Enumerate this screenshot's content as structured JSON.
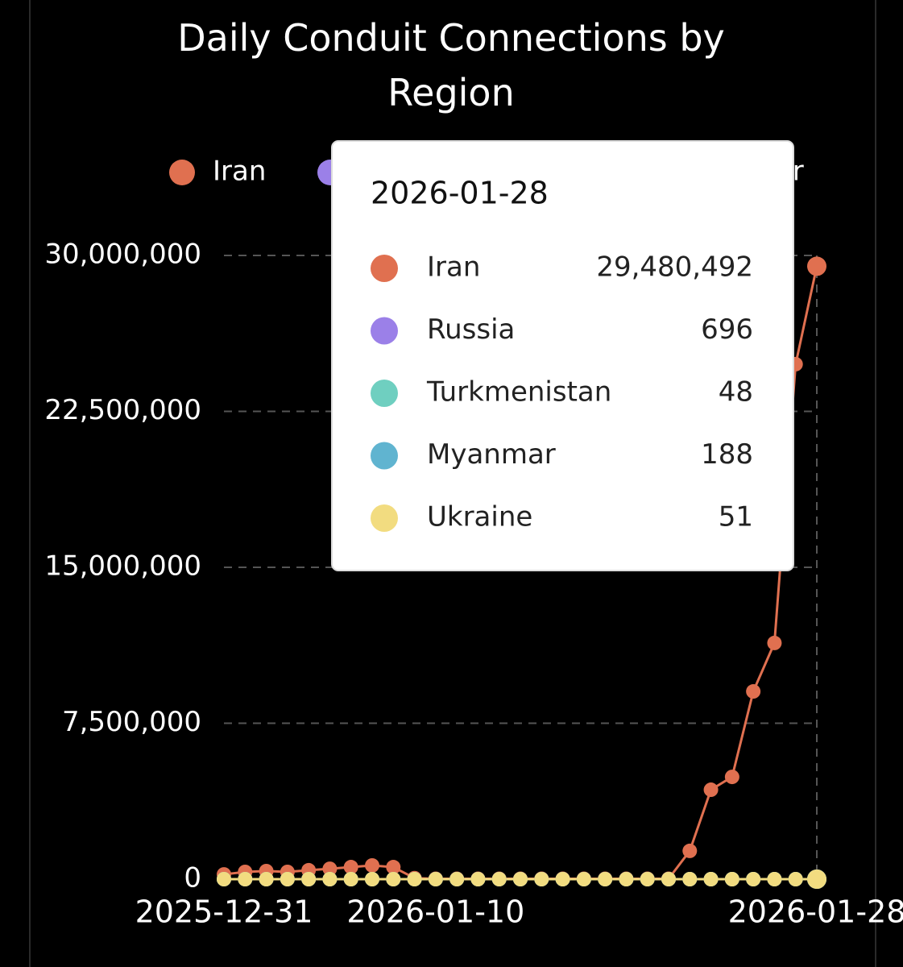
{
  "chart_data": {
    "type": "line",
    "title": "Daily Conduit Connections by Region",
    "categories": [
      "2025-12-31",
      null,
      null,
      null,
      null,
      null,
      null,
      null,
      null,
      null,
      "2026-01-10",
      null,
      null,
      null,
      null,
      null,
      null,
      null,
      null,
      null,
      null,
      null,
      null,
      null,
      null,
      null,
      null,
      null,
      "2026-01-28"
    ],
    "series": [
      {
        "name": "Iran",
        "color": "#e07050",
        "values": [
          230000,
          350000,
          390000,
          350000,
          430000,
          500000,
          580000,
          660000,
          580000,
          50000,
          20000,
          20000,
          20000,
          20000,
          20000,
          20000,
          20000,
          20000,
          20000,
          20000,
          20000,
          20000,
          1360000,
          4300000,
          4920000,
          9030000,
          11360000,
          24770000,
          29480492
        ],
        "value_labels": [
          null,
          null,
          null,
          null,
          null,
          null,
          null,
          null,
          null,
          null,
          null,
          null,
          null,
          null,
          null,
          null,
          null,
          null,
          null,
          null,
          null,
          null,
          null,
          null,
          null,
          null,
          null,
          null,
          "29,480,492"
        ]
      },
      {
        "name": "Russia",
        "color": "#9b80e8",
        "values": [
          520,
          610,
          580,
          640,
          600,
          700,
          660,
          720,
          690,
          650,
          600,
          620,
          680,
          700,
          740,
          710,
          690,
          730,
          760,
          700,
          680,
          720,
          740,
          700,
          690,
          710,
          680,
          700,
          696
        ]
      },
      {
        "name": "Turkmenistan",
        "color": "#6fcfc0",
        "values": [
          40,
          45,
          50,
          42,
          48,
          55,
          50,
          47,
          44,
          46,
          50,
          52,
          49,
          45,
          43,
          48,
          51,
          50,
          47,
          46,
          44,
          49,
          52,
          50,
          48,
          47,
          45,
          49,
          48
        ]
      },
      {
        "name": "Myanmar",
        "color": "#60b4d0",
        "values": [
          160,
          180,
          170,
          190,
          200,
          175,
          185,
          210,
          195,
          180,
          170,
          190,
          200,
          185,
          175,
          180,
          195,
          205,
          190,
          180,
          185,
          175,
          190,
          195,
          185,
          180,
          190,
          185,
          188
        ]
      },
      {
        "name": "Ukraine",
        "color": "#f2dc80",
        "values": [
          45,
          50,
          48,
          52,
          47,
          55,
          50,
          49,
          46,
          48,
          52,
          50,
          47,
          49,
          53,
          51,
          48,
          46,
          50,
          52,
          49,
          47,
          50,
          53,
          51,
          48,
          50,
          49,
          51
        ]
      }
    ],
    "ylim": [
      0,
      30000000
    ],
    "yticks": [
      0,
      {
        "value": 7500000,
        "label": "7,500,000"
      },
      {
        "value": 15000000,
        "label": "15,000,000"
      },
      {
        "value": 22500000,
        "label": "22,500,000"
      },
      {
        "value": 30000000,
        "label": "30,000,000"
      }
    ],
    "grid": true,
    "legend": "top"
  }
}
